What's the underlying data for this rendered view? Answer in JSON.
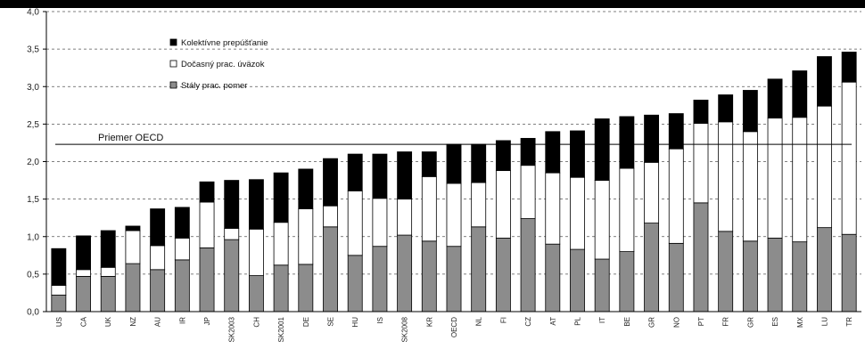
{
  "chart_data": {
    "type": "bar",
    "stacked": true,
    "title": "",
    "xlabel": "",
    "ylabel": "",
    "ylim": [
      0,
      4
    ],
    "yticks": [
      "0,0",
      "0,5",
      "1,0",
      "1,5",
      "2,0",
      "2,5",
      "3,0",
      "3,5",
      "4,0"
    ],
    "grid": true,
    "legend_position": "top-left",
    "categories": [
      "US",
      "CA",
      "UK",
      "NZ",
      "AU",
      "IR",
      "JP",
      "SK2003",
      "CH",
      "SK2001",
      "DE",
      "SE",
      "HU",
      "IS",
      "SK2008",
      "KR",
      "OECD",
      "NL",
      "FI",
      "CZ",
      "AT",
      "PL",
      "IT",
      "BE",
      "GR",
      "NO",
      "PT",
      "FR",
      "GR",
      "ES",
      "MX",
      "LU",
      "TR"
    ],
    "series": [
      {
        "name": "Stály prac. pomer",
        "color": "#8c8c8c",
        "values": [
          0.22,
          0.47,
          0.47,
          0.64,
          0.56,
          0.69,
          0.85,
          0.96,
          0.48,
          0.62,
          0.63,
          1.13,
          0.75,
          0.87,
          1.02,
          0.94,
          0.87,
          1.13,
          0.98,
          1.24,
          0.9,
          0.83,
          0.7,
          0.8,
          1.18,
          0.91,
          1.45,
          1.07,
          0.94,
          0.98,
          0.93,
          1.12,
          1.03
        ]
      },
      {
        "name": "Dočasný prac. úväzok",
        "color": "#ffffff",
        "values": [
          0.13,
          0.09,
          0.12,
          0.44,
          0.32,
          0.29,
          0.61,
          0.15,
          0.62,
          0.57,
          0.74,
          0.28,
          0.86,
          0.64,
          0.48,
          0.86,
          0.84,
          0.59,
          0.9,
          0.71,
          0.95,
          0.96,
          1.05,
          1.11,
          0.81,
          1.26,
          1.06,
          1.46,
          1.46,
          1.6,
          1.66,
          1.62,
          2.03
        ]
      },
      {
        "name": "Kolektívne prepúšťanie",
        "color": "#000000",
        "values": [
          0.49,
          0.45,
          0.49,
          0.06,
          0.49,
          0.41,
          0.27,
          0.64,
          0.66,
          0.66,
          0.53,
          0.63,
          0.49,
          0.59,
          0.63,
          0.33,
          0.52,
          0.51,
          0.4,
          0.36,
          0.55,
          0.62,
          0.82,
          0.69,
          0.63,
          0.47,
          0.31,
          0.36,
          0.55,
          0.52,
          0.62,
          0.66,
          0.4
        ]
      }
    ],
    "annotations": [
      {
        "text": "Priemer OECD",
        "y": 2.23
      }
    ]
  }
}
